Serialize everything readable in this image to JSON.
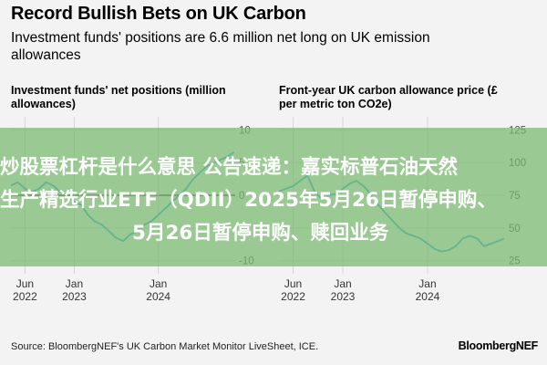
{
  "header": {
    "title": "Record Bullish Bets on UK Carbon",
    "subtitle": "Investment funds' positions are 6.6 million net long on UK emission allowances"
  },
  "banner": {
    "line1": "炒股票杠杆是什么意思 公告速递：嘉实标普石油天然",
    "line2": "生产精选行业ETF（QDII）2025年5月26日暂停申购、",
    "line3": "5月26日暂停申购、赎回业务"
  },
  "footer": {
    "source": "Source: BloombergNEF's UK Carbon Market Monitor LiveSheet, ICE.",
    "brand": "BloombergNEF"
  },
  "colors": {
    "line": "#2ea7e8",
    "zero_line": "#222222",
    "grid": "#d6d6d6",
    "banner": "#78b96e"
  },
  "chart_data": [
    {
      "type": "line",
      "title": "Investment funds' net positions (million allowances)",
      "x_ticks": [
        "Jun\n2022",
        "Jan\n2023",
        "Jan\n2024"
      ],
      "x_tick_dates": [
        "2022-06-01",
        "2023-01-01",
        "2024-01-01"
      ],
      "xlim": [
        "2022-04-01",
        "2024-11-30"
      ],
      "y_ticks": [
        10,
        5,
        0,
        -5,
        -10
      ],
      "ylim": [
        -12,
        12
      ],
      "grid": true,
      "series": [
        {
          "x": [
            "2022-04-01",
            "2022-05-01",
            "2022-06-01",
            "2022-07-01",
            "2022-08-01",
            "2022-09-01",
            "2022-10-01",
            "2022-11-01",
            "2022-12-01",
            "2023-01-01",
            "2023-02-01",
            "2023-03-01",
            "2023-04-01",
            "2023-05-01",
            "2023-06-01",
            "2023-07-01",
            "2023-08-01",
            "2023-09-01",
            "2023-10-01",
            "2023-11-01",
            "2023-12-01",
            "2024-01-01",
            "2024-02-01",
            "2024-03-01",
            "2024-04-01",
            "2024-05-01",
            "2024-06-01",
            "2024-07-01",
            "2024-08-01",
            "2024-09-01",
            "2024-10-01",
            "2024-11-01",
            "2024-11-25"
          ],
          "y": [
            1.5,
            2.0,
            1.0,
            0.5,
            1.0,
            2.0,
            1.5,
            0.5,
            0.0,
            -1.0,
            -1.5,
            -3.0,
            -4.0,
            -4.5,
            -5.5,
            -6.5,
            -7.0,
            -6.0,
            -5.5,
            -4.5,
            -4.0,
            -3.0,
            -2.0,
            -1.0,
            0.0,
            1.0,
            2.5,
            3.5,
            4.5,
            5.0,
            5.5,
            6.0,
            6.6
          ]
        }
      ]
    },
    {
      "type": "line",
      "title": "Front-year UK carbon allowance price (£ per metric ton CO2e)",
      "x_ticks": [
        "Jun\n2022",
        "Jan\n2023",
        "Jan\n2024"
      ],
      "x_tick_dates": [
        "2022-06-01",
        "2023-01-01",
        "2024-01-01"
      ],
      "xlim": [
        "2022-04-01",
        "2024-11-30"
      ],
      "y_ticks": [
        125,
        100,
        75,
        50,
        25
      ],
      "ylim": [
        15,
        135
      ],
      "grid": true,
      "series": [
        {
          "x": [
            "2022-04-01",
            "2022-05-01",
            "2022-06-01",
            "2022-07-01",
            "2022-08-01",
            "2022-09-01",
            "2022-10-01",
            "2022-11-01",
            "2022-12-01",
            "2023-01-01",
            "2023-02-01",
            "2023-03-01",
            "2023-04-01",
            "2023-05-01",
            "2023-06-01",
            "2023-07-01",
            "2023-08-01",
            "2023-09-01",
            "2023-10-01",
            "2023-11-01",
            "2023-12-01",
            "2024-01-01",
            "2024-02-01",
            "2024-03-01",
            "2024-04-01",
            "2024-05-01",
            "2024-06-01",
            "2024-07-01",
            "2024-08-01",
            "2024-09-01",
            "2024-10-01",
            "2024-11-01",
            "2024-11-25"
          ],
          "y": [
            78,
            80,
            82,
            86,
            90,
            78,
            72,
            75,
            76,
            80,
            84,
            86,
            82,
            76,
            68,
            62,
            56,
            50,
            46,
            44,
            42,
            38,
            34,
            32,
            33,
            36,
            42,
            44,
            42,
            36,
            38,
            40,
            42
          ]
        }
      ]
    }
  ]
}
